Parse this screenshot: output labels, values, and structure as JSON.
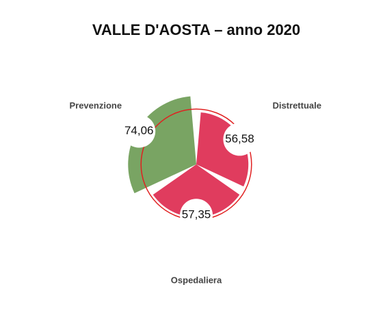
{
  "chart_data": {
    "type": "polar",
    "title": "VALLE D'AOSTA – anno 2020",
    "categories": [
      "Distrettuale",
      "Ospedaliera",
      "Prevenzione"
    ],
    "values": [
      56.58,
      57.35,
      74.06
    ],
    "value_labels": [
      "56,58",
      "57,35",
      "74,06"
    ],
    "colors": [
      "#e03c5e",
      "#e03c5e",
      "#79a463"
    ],
    "rlim": [
      0,
      75
    ],
    "reference_line": {
      "value": 60,
      "color": "#e02020"
    }
  }
}
